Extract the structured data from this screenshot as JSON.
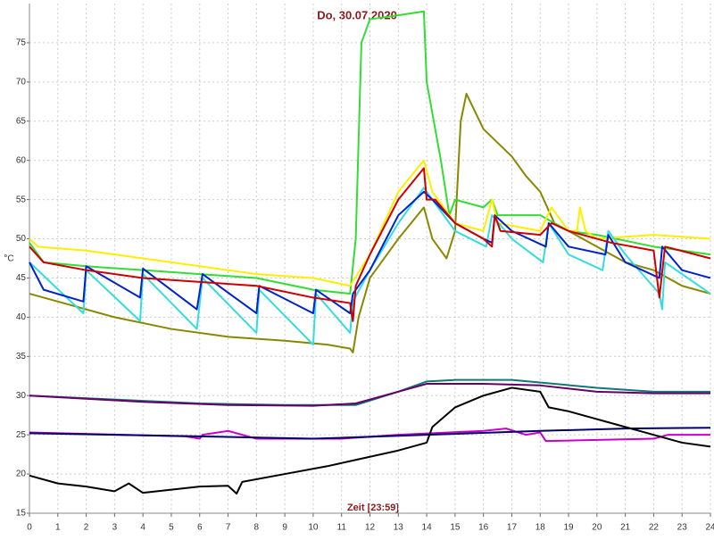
{
  "chart_data": {
    "type": "line",
    "title": "Do, 30.07.2020",
    "xlabel": "Zeit [23:59]",
    "ylabel": "°C",
    "xlim": [
      0,
      24
    ],
    "ylim": [
      15,
      80
    ],
    "xticks": [
      0,
      1,
      2,
      3,
      4,
      5,
      6,
      7,
      8,
      9,
      10,
      11,
      12,
      13,
      14,
      15,
      16,
      17,
      18,
      19,
      20,
      21,
      22,
      23,
      24
    ],
    "yticks": [
      15,
      20,
      25,
      30,
      35,
      40,
      45,
      50,
      55,
      60,
      65,
      70,
      75
    ],
    "grid": true,
    "series": [
      {
        "color": "#888800",
        "x": [
          0,
          1,
          3,
          5,
          7,
          9,
          10.5,
          11.3,
          11.4,
          11.6,
          12,
          13,
          13.9,
          14.2,
          14.7,
          15,
          15.2,
          15.4,
          16,
          17,
          17.5,
          18,
          18.5,
          19,
          20,
          21,
          22,
          23,
          24
        ],
        "values": [
          43,
          42,
          40,
          38.5,
          37.5,
          37,
          36.5,
          36,
          35.5,
          40,
          45,
          50,
          54,
          50,
          47.5,
          51,
          65,
          68.5,
          64,
          60.5,
          58,
          56,
          52,
          51,
          49,
          47,
          46,
          44,
          43
        ]
      },
      {
        "color": "#33dd33",
        "x": [
          0,
          0.5,
          2,
          4,
          6,
          8,
          10,
          11.3,
          11.5,
          11.7,
          12,
          13,
          13.9,
          14,
          14.5,
          14.8,
          15,
          16,
          16.3,
          16.5,
          18,
          18.5,
          19,
          20,
          22,
          24
        ],
        "values": [
          49.5,
          47,
          46.5,
          46,
          45.5,
          45,
          43.5,
          43,
          50,
          75,
          78,
          78.5,
          79,
          70,
          60,
          53,
          55,
          54,
          55,
          53,
          53,
          52,
          51,
          50.5,
          49,
          48
        ]
      },
      {
        "color": "#ffee00",
        "x": [
          0,
          0.3,
          2,
          4,
          6,
          8,
          10,
          11.3,
          12,
          13,
          13.9,
          14.2,
          15,
          16,
          16.3,
          16.5,
          18,
          18.4,
          19,
          19.3,
          19.4,
          19.6,
          20,
          22,
          24
        ],
        "values": [
          50,
          49,
          48.5,
          47.5,
          46.5,
          45.5,
          45,
          44,
          48,
          56,
          60,
          56,
          52,
          51,
          55,
          52,
          51,
          54,
          51,
          51,
          54,
          51,
          50,
          50.5,
          50
        ]
      },
      {
        "color": "#33dddd",
        "x": [
          0,
          1.9,
          2,
          3.9,
          4,
          5.9,
          6.1,
          8,
          8.1,
          10,
          10.1,
          11.3,
          11.4,
          12,
          13,
          13.9,
          14.2,
          15,
          16.1,
          16.3,
          17,
          18.1,
          18.3,
          19,
          20.2,
          20.4,
          21,
          22.2,
          22.3,
          22.4,
          23,
          24
        ],
        "values": [
          47,
          40.5,
          46,
          39.5,
          45.5,
          38.5,
          45,
          38,
          43.5,
          36.5,
          43,
          38,
          42,
          46,
          52,
          56.5,
          55,
          51,
          49,
          53,
          50,
          47,
          52,
          48,
          46,
          51,
          48,
          43,
          41,
          47,
          45.5,
          43
        ]
      },
      {
        "color": "#0022cc",
        "x": [
          0,
          0.5,
          1.9,
          2,
          3.9,
          4,
          5.9,
          6.1,
          8,
          8.1,
          10,
          10.1,
          11.3,
          11.4,
          12,
          13,
          13.9,
          14.2,
          15,
          16,
          16.3,
          16.4,
          17,
          18.2,
          18.3,
          19,
          20.3,
          20.4,
          21,
          22.2,
          22.3,
          23,
          24
        ],
        "values": [
          47,
          43.5,
          42,
          46.5,
          42.5,
          46.2,
          41,
          45.5,
          40.5,
          44,
          40.5,
          43.5,
          40.5,
          43,
          46,
          53,
          56,
          55,
          52,
          50,
          49.5,
          53,
          51,
          49,
          52,
          49,
          48,
          50.5,
          47,
          45,
          49,
          46,
          45
        ]
      },
      {
        "color": "#cc0000",
        "x": [
          0,
          0.5,
          2,
          4,
          6,
          8,
          10,
          11.3,
          11.4,
          11.5,
          12,
          13,
          13.9,
          14,
          14.3,
          15,
          16,
          16.3,
          16.4,
          16.6,
          18,
          18.4,
          19,
          20,
          20.5,
          22,
          22.2,
          22.4,
          24
        ],
        "values": [
          49,
          47,
          46,
          45,
          44.5,
          44,
          42.5,
          41.8,
          39.5,
          44,
          48,
          55,
          59,
          55,
          55,
          52,
          50,
          49,
          53,
          51,
          50.5,
          52,
          51,
          50,
          49.5,
          48.5,
          42.5,
          49,
          47.5
        ]
      },
      {
        "color": "#117777",
        "x": [
          0,
          3,
          6,
          9,
          11.5,
          13,
          14,
          15,
          17,
          20,
          22,
          24
        ],
        "values": [
          30,
          29.5,
          29,
          28.8,
          28.8,
          30.5,
          31.8,
          32,
          32,
          31,
          30.5,
          30.5
        ]
      },
      {
        "color": "#660066",
        "x": [
          0,
          4,
          7,
          10,
          11.5,
          13,
          14,
          16,
          18,
          20,
          22,
          24
        ],
        "values": [
          30,
          29.2,
          28.8,
          28.7,
          29,
          30.5,
          31.5,
          31.5,
          31.3,
          30.5,
          30.3,
          30.3
        ]
      },
      {
        "color": "#cc00cc",
        "x": [
          0,
          5.5,
          6,
          6.1,
          7,
          8,
          11,
          13,
          16,
          16.8,
          17.5,
          18,
          18.2,
          22,
          22.5,
          24
        ],
        "values": [
          25.3,
          24.8,
          24.5,
          25,
          25.5,
          24.5,
          24.5,
          25,
          25.5,
          25.8,
          25,
          25.3,
          24.2,
          24.5,
          25,
          25
        ]
      },
      {
        "color": "#000066",
        "x": [
          0,
          6,
          10,
          14,
          18,
          21,
          24
        ],
        "values": [
          25.2,
          24.8,
          24.5,
          25,
          25.5,
          25.8,
          25.9
        ]
      },
      {
        "color": "#000000",
        "x": [
          0,
          1,
          2,
          3,
          3.5,
          4,
          5,
          6,
          7,
          7.3,
          7.5,
          9,
          10.5,
          11.5,
          13,
          14,
          14.2,
          15,
          16,
          17,
          18,
          18.3,
          19,
          21,
          22,
          23,
          24
        ],
        "values": [
          19.8,
          18.8,
          18.4,
          17.8,
          18.8,
          17.6,
          18,
          18.4,
          18.5,
          17.5,
          19,
          20,
          21,
          21.8,
          23,
          24,
          26,
          28.5,
          30,
          31,
          30.5,
          28.5,
          28,
          26,
          25,
          24,
          23.5
        ]
      }
    ]
  }
}
